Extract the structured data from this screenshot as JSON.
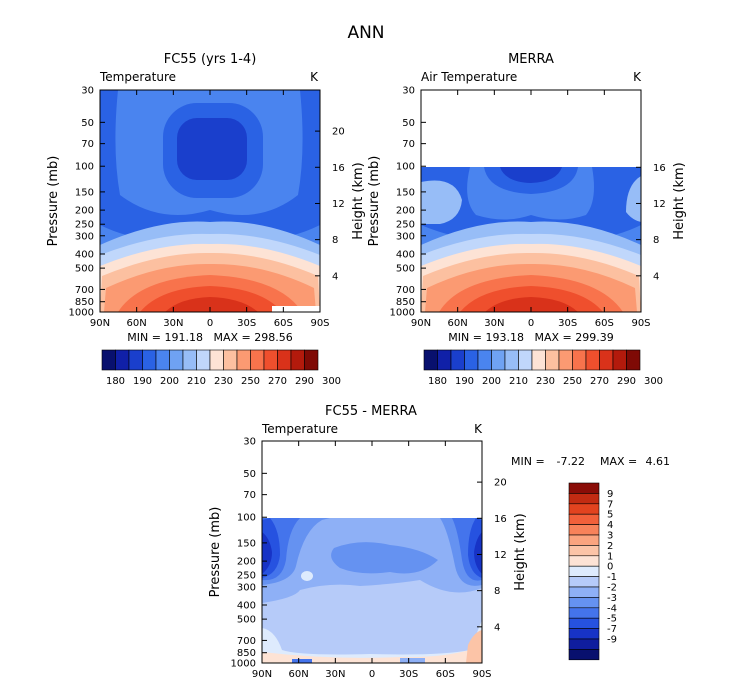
{
  "title": "ANN",
  "colors": {
    "temperature_scale": [
      "#08106e",
      "#1020a8",
      "#1a3fcc",
      "#2a62e4",
      "#4a84ef",
      "#6fa2f3",
      "#97bdf7",
      "#c0d7fb",
      "#fde3d5",
      "#fcc0a0",
      "#fb9a72",
      "#f8734c",
      "#ef4f2d",
      "#d9321a",
      "#b31a0c",
      "#7f0a05"
    ],
    "difference_scale": [
      "#08106e",
      "#0f1d9e",
      "#1733c6",
      "#2652e0",
      "#4474ec",
      "#6592f1",
      "#8eb0f6",
      "#b6cbf9",
      "#deebfd",
      "#fde3d5",
      "#fcc4a7",
      "#fba47f",
      "#f8825a",
      "#f2603a",
      "#e2431f",
      "#c22b12",
      "#8a0d07"
    ]
  },
  "chart_data": [
    {
      "type": "heatmap",
      "title": "FC55 (yrs 1-4)",
      "variable_label": "Temperature",
      "units": "K",
      "ylabel": "Pressure (mb)",
      "y2label": "Height (km)",
      "x_ticks": [
        "90N",
        "60N",
        "30N",
        "0",
        "30S",
        "60S",
        "90S"
      ],
      "y_ticks": [
        "30",
        "50",
        "70",
        "100",
        "150",
        "200",
        "250",
        "300",
        "400",
        "500",
        "700",
        "850",
        "1000"
      ],
      "y2_ticks": [
        "20",
        "16",
        "12",
        "8",
        "4"
      ],
      "stats": {
        "min": "MIN = 191.18",
        "max": "MAX = 298.56"
      },
      "colorbar_labels": [
        "180",
        "190",
        "200",
        "210",
        "230",
        "250",
        "270",
        "290",
        "300"
      ],
      "data_top_pressure": 30
    },
    {
      "type": "heatmap",
      "title": "MERRA",
      "variable_label": "Air Temperature",
      "units": "K",
      "ylabel": "Pressure (mb)",
      "y2label": "Height (km)",
      "x_ticks": [
        "90N",
        "60N",
        "30N",
        "0",
        "30S",
        "60S",
        "90S"
      ],
      "y_ticks": [
        "30",
        "50",
        "70",
        "100",
        "150",
        "200",
        "250",
        "300",
        "400",
        "500",
        "700",
        "850",
        "1000"
      ],
      "y2_ticks": [
        "16",
        "12",
        "8",
        "4"
      ],
      "stats": {
        "min": "MIN = 193.18",
        "max": "MAX = 299.39"
      },
      "colorbar_labels": [
        "180",
        "190",
        "200",
        "210",
        "230",
        "250",
        "270",
        "290",
        "300"
      ],
      "data_top_pressure": 100
    },
    {
      "type": "heatmap",
      "title": "FC55 - MERRA",
      "variable_label": "Temperature",
      "units": "K",
      "ylabel": "Pressure (mb)",
      "y2label": "Height (km)",
      "x_ticks": [
        "90N",
        "60N",
        "30N",
        "0",
        "30S",
        "60S",
        "90S"
      ],
      "y_ticks": [
        "30",
        "50",
        "70",
        "100",
        "150",
        "200",
        "250",
        "300",
        "400",
        "500",
        "700",
        "850",
        "1000"
      ],
      "y2_ticks": [
        "20",
        "16",
        "12",
        "8",
        "4"
      ],
      "stats": {
        "min_label": "MIN =",
        "min_value": "-7.22",
        "max_label": "MAX =",
        "max_value": "4.61"
      },
      "colorbar_labels": [
        "9",
        "7",
        "5",
        "4",
        "3",
        "2",
        "1",
        "0",
        "-1",
        "-2",
        "-3",
        "-4",
        "-5",
        "-7",
        "-9"
      ],
      "data_top_pressure": 100
    }
  ]
}
